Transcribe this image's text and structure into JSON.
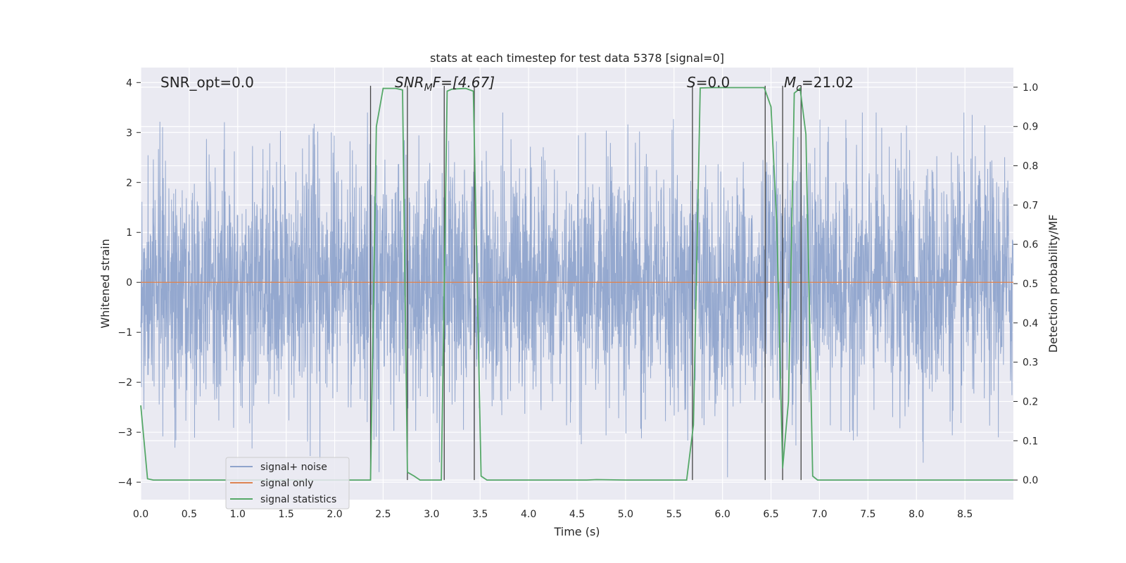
{
  "chart_data": {
    "type": "line",
    "title": "stats at each timestep for test data 5378 [signal=0]",
    "xlabel": "Time (s)",
    "ylabel_left": "Whitened strain",
    "ylabel_right": "Detection probability/MF",
    "xlim": [
      0.0,
      9.0
    ],
    "ylim_left": [
      -4.35,
      4.3
    ],
    "ylim_right": [
      -0.05,
      1.05
    ],
    "grid": true,
    "x_ticks": [
      "0.0",
      "0.5",
      "1.0",
      "1.5",
      "2.0",
      "2.5",
      "3.0",
      "3.5",
      "4.0",
      "4.5",
      "5.0",
      "5.5",
      "6.0",
      "6.5",
      "7.0",
      "7.5",
      "8.0",
      "8.5"
    ],
    "y_ticks_left": [
      "4",
      "3",
      "2",
      "1",
      "0",
      "−1",
      "−2",
      "−3",
      "−4"
    ],
    "y_ticks_right": [
      "1.0",
      "0.9",
      "0.8",
      "0.7",
      "0.6",
      "0.5",
      "0.4",
      "0.3",
      "0.2",
      "0.1",
      "0.0"
    ],
    "annotations": {
      "snr_opt": "SNR_opt=0.0",
      "snr_mf_main": "SNR",
      "snr_mf_sub": "M",
      "snr_mf_rest": "F=[4.67]",
      "s_main": "S",
      "s_rest": "=0.0",
      "mc_main": "M",
      "mc_sub": "c",
      "mc_rest": "=21.02"
    },
    "legend": {
      "placement": "lower-left",
      "items": [
        "signal+ noise",
        "signal only",
        "signal statistics"
      ]
    },
    "colors": {
      "noise": "#8fa4cc",
      "signal_only": "#dd8452",
      "statistics": "#55a868",
      "markers": "#444444",
      "background": "#eaeaf2"
    },
    "series": [
      {
        "name": "signal+ noise",
        "axis": "left",
        "description": "whitened strain, Gaussian-like noise, amplitude roughly within ±4"
      },
      {
        "name": "signal only",
        "axis": "left",
        "x": [
          0.0,
          9.0
        ],
        "y": [
          0.0,
          0.0
        ]
      },
      {
        "name": "signal statistics",
        "axis": "right",
        "x": [
          0.0,
          0.07,
          0.13,
          2.37,
          2.43,
          2.5,
          2.63,
          2.7,
          2.75,
          2.82,
          2.88,
          3.0,
          3.1,
          3.16,
          3.21,
          3.35,
          3.43,
          3.51,
          3.57,
          4.6,
          4.7,
          5.0,
          5.63,
          5.7,
          5.77,
          5.9,
          6.43,
          6.5,
          6.56,
          6.62,
          6.68,
          6.74,
          6.8,
          6.86,
          6.93,
          6.98,
          9.0
        ],
        "y": [
          0.19,
          0.003,
          0.0,
          0.0,
          0.9,
          0.997,
          0.997,
          0.993,
          0.02,
          0.01,
          0.0,
          0.0,
          0.0,
          0.99,
          0.995,
          0.997,
          0.99,
          0.01,
          0.0,
          0.0,
          0.001,
          0.0,
          0.0,
          0.14,
          0.998,
          0.999,
          0.999,
          0.95,
          0.65,
          0.03,
          0.2,
          0.985,
          0.997,
          0.88,
          0.01,
          0.0,
          0.0
        ]
      }
    ],
    "vertical_markers": [
      2.37,
      2.75,
      3.13,
      3.44,
      5.69,
      6.44,
      6.62,
      6.81
    ]
  }
}
